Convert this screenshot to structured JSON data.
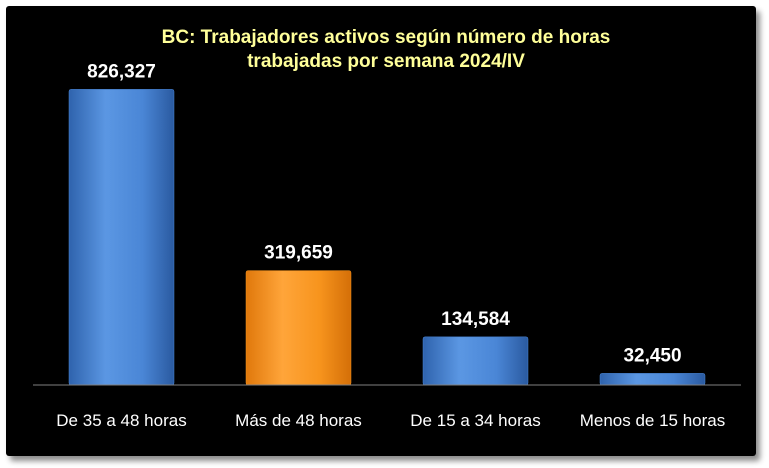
{
  "chart_data": {
    "type": "bar",
    "title_lines": [
      "BC: Trabajadores activos según número de horas",
      "trabajadas por semana 2024/IV"
    ],
    "categories": [
      "De 35 a 48 horas",
      "Más de 48 horas",
      "De 15 a 34 horas",
      "Menos de 15 horas"
    ],
    "values": [
      826327,
      319659,
      134584,
      32450
    ],
    "value_labels": [
      "826,327",
      "319,659",
      "134,584",
      "32,450"
    ],
    "bar_colors": [
      "#4a86d6",
      "#f7941d",
      "#4a86d6",
      "#4a86d6"
    ],
    "ylim": [
      0,
      900000
    ],
    "xlabel": "",
    "ylabel": "",
    "grid": false,
    "legend": "none"
  },
  "colors": {
    "background": "#000000",
    "title": "#ffff99",
    "text": "#ffffff",
    "axis": "#7f7f7f"
  }
}
